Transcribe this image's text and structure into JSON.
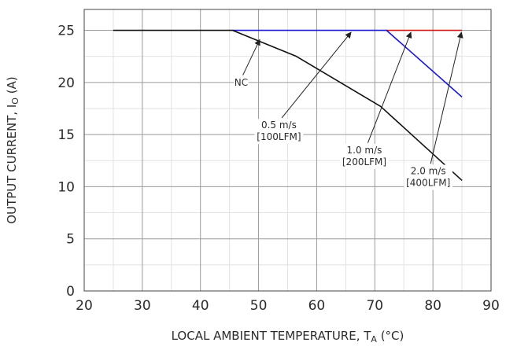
{
  "chart_data": {
    "type": "line",
    "xlabel": "LOCAL AMBIENT TEMPERATURE, T",
    "xlabel_sub": "A",
    "xlabel_unit": " (°C)",
    "ylabel": "OUTPUT CURRENT, I",
    "ylabel_sub": "O",
    "ylabel_unit": " (A)",
    "xlim": [
      20,
      90
    ],
    "ylim": [
      0,
      27
    ],
    "xticks": [
      20,
      30,
      40,
      50,
      60,
      70,
      80,
      90
    ],
    "yticks": [
      0,
      5,
      10,
      15,
      20,
      25
    ],
    "grid": true,
    "series": [
      {
        "color": "#d01818",
        "x": [
          72,
          85
        ],
        "y": [
          25,
          25
        ]
      },
      {
        "color": "#1a1ad0",
        "x": [
          45.5,
          72,
          85
        ],
        "y": [
          25,
          25,
          18.6
        ]
      },
      {
        "color": "#111111",
        "x": [
          25,
          45.5,
          56.5,
          71,
          85
        ],
        "y": [
          25,
          25,
          22.5,
          17.7,
          10.6
        ]
      }
    ],
    "annotations": [
      {
        "lines": [
          "NC"
        ],
        "text_x": 47.0,
        "text_y": 19.7,
        "arrow_from": [
          47.3,
          20.7
        ],
        "arrow_to": [
          50.2,
          24.1
        ]
      },
      {
        "lines": [
          "0.5 m/s",
          "[100LFM]"
        ],
        "text_x": 53.5,
        "text_y": 15.6,
        "arrow_from": [
          54.0,
          16.6
        ],
        "arrow_to": [
          65.9,
          24.8
        ]
      },
      {
        "lines": [
          "1.0 m/s",
          "[200LFM]"
        ],
        "text_x": 68.2,
        "text_y": 13.2,
        "arrow_from": [
          68.8,
          14.2
        ],
        "arrow_to": [
          76.2,
          24.8
        ]
      },
      {
        "lines": [
          "2.0 m/s",
          "[400LFM]"
        ],
        "text_x": 79.2,
        "text_y": 11.2,
        "arrow_from": [
          79.6,
          12.2
        ],
        "arrow_to": [
          84.9,
          24.8
        ]
      }
    ]
  }
}
